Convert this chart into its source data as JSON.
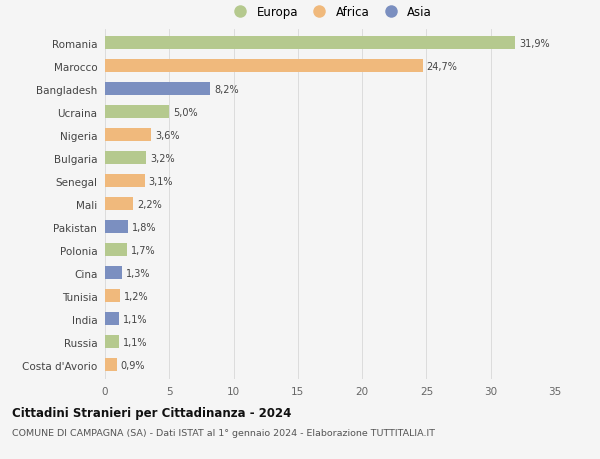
{
  "countries": [
    "Romania",
    "Marocco",
    "Bangladesh",
    "Ucraina",
    "Nigeria",
    "Bulgaria",
    "Senegal",
    "Mali",
    "Pakistan",
    "Polonia",
    "Cina",
    "Tunisia",
    "India",
    "Russia",
    "Costa d'Avorio"
  ],
  "values": [
    31.9,
    24.7,
    8.2,
    5.0,
    3.6,
    3.2,
    3.1,
    2.2,
    1.8,
    1.7,
    1.3,
    1.2,
    1.1,
    1.1,
    0.9
  ],
  "labels": [
    "31,9%",
    "24,7%",
    "8,2%",
    "5,0%",
    "3,6%",
    "3,2%",
    "3,1%",
    "2,2%",
    "1,8%",
    "1,7%",
    "1,3%",
    "1,2%",
    "1,1%",
    "1,1%",
    "0,9%"
  ],
  "continents": [
    "Europa",
    "Africa",
    "Asia",
    "Europa",
    "Africa",
    "Europa",
    "Africa",
    "Africa",
    "Asia",
    "Europa",
    "Asia",
    "Africa",
    "Asia",
    "Europa",
    "Africa"
  ],
  "colors": {
    "Europa": "#b5c98e",
    "Africa": "#f0b97c",
    "Asia": "#7b8fc0"
  },
  "legend_order": [
    "Europa",
    "Africa",
    "Asia"
  ],
  "title": "Cittadini Stranieri per Cittadinanza - 2024",
  "subtitle": "COMUNE DI CAMPAGNA (SA) - Dati ISTAT al 1° gennaio 2024 - Elaborazione TUTTITALIA.IT",
  "xlim": [
    0,
    35
  ],
  "xticks": [
    0,
    5,
    10,
    15,
    20,
    25,
    30,
    35
  ],
  "background_color": "#f5f5f5",
  "grid_color": "#d8d8d8",
  "bar_height": 0.55
}
